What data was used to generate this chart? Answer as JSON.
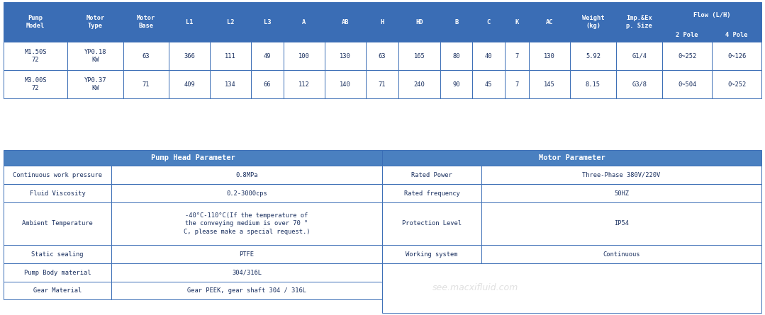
{
  "header_bg": "#3A6DB5",
  "header_text_color": "#FFFFFF",
  "cell_bg": "#FFFFFF",
  "cell_text_color": "#1A3060",
  "border_color": "#3A6DB5",
  "section_bg": "#4A80C0",
  "outer_bg": "#FFFFFF",
  "table1_col_headers": [
    "Pump\nModel",
    "Motor\nType",
    "Motor\nBase",
    "L1",
    "L2",
    "L3",
    "A",
    "AB",
    "H",
    "HD",
    "B",
    "C",
    "K",
    "AC",
    "Weight\n(kg)",
    "Imp.&Ex\np. Size",
    "2 Pole",
    "4 Pole"
  ],
  "flow_header": "Flow (L/H)",
  "table1_rows": [
    [
      "M1.50S\n72",
      "YP0.18\nKW",
      "63",
      "366",
      "111",
      "49",
      "100",
      "130",
      "63",
      "165",
      "80",
      "40",
      "7",
      "130",
      "5.92",
      "G1/4",
      "0~252",
      "0~126"
    ],
    [
      "M3.00S\n72",
      "YP0.37\nKW",
      "71",
      "409",
      "134",
      "66",
      "112",
      "140",
      "71",
      "240",
      "90",
      "45",
      "7",
      "145",
      "8.15",
      "G3/8",
      "0~504",
      "0~252"
    ]
  ],
  "param_rows": [
    [
      "Continuous work pressure",
      "0.8MPa",
      "Rated Power",
      "Three-Phase 380V/220V"
    ],
    [
      "Fluid Viscosity",
      "0.2-3000cps",
      "Rated frequency",
      "50HZ"
    ],
    [
      "Ambient Temperature",
      "-40°C-110°C(If the temperature of\nthe conveying medium is over 70 °\nC, please make a special request.)",
      "Protection Level",
      "IP54"
    ],
    [
      "Static sealing",
      "PTFE",
      "Working system",
      "Continuous"
    ],
    [
      "Pump Body material",
      "304/316L",
      "",
      ""
    ],
    [
      "Gear Material",
      "Gear PEEK, gear shaft 304 / 316L",
      "",
      ""
    ]
  ]
}
